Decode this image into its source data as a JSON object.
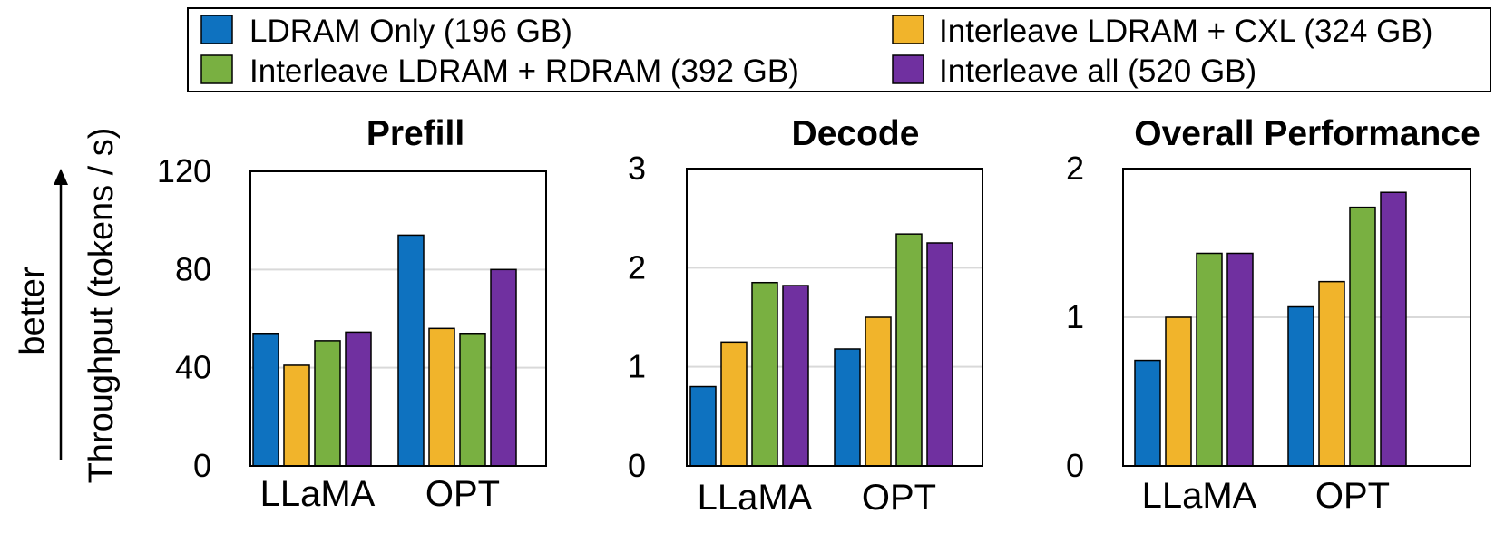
{
  "chart_data": {
    "legend": [
      {
        "name": "LDRAM Only (196 GB)",
        "color": "#0e72c0"
      },
      {
        "name": "Interleave LDRAM + CXL (324 GB)",
        "color": "#f1b42b"
      },
      {
        "name": "Interleave LDRAM + RDRAM (392 GB)",
        "color": "#79b041"
      },
      {
        "name": "Interleave all (520 GB)",
        "color": "#7030a0"
      }
    ],
    "ylabel": "Throughput (tokens / s)",
    "arrow_label": "better",
    "panels": [
      {
        "type": "bar",
        "title": "Prefill",
        "categories": [
          "LLaMA",
          "OPT"
        ],
        "ylim": [
          0,
          120
        ],
        "yticks": [
          "0",
          "40",
          "80",
          "120"
        ],
        "series": [
          {
            "name": "LDRAM Only (196 GB)",
            "values": [
              54,
              94
            ]
          },
          {
            "name": "Interleave LDRAM + CXL (324 GB)",
            "values": [
              41,
              56
            ]
          },
          {
            "name": "Interleave LDRAM + RDRAM (392 GB)",
            "values": [
              51,
              54
            ]
          },
          {
            "name": "Interleave all (520 GB)",
            "values": [
              54.5,
              80
            ]
          }
        ]
      },
      {
        "type": "bar",
        "title": "Decode",
        "categories": [
          "LLaMA",
          "OPT"
        ],
        "ylim": [
          0,
          3
        ],
        "yticks": [
          "0",
          "1",
          "2",
          "3"
        ],
        "series": [
          {
            "name": "LDRAM Only (196 GB)",
            "values": [
              0.8,
              1.18
            ]
          },
          {
            "name": "Interleave LDRAM + CXL (324 GB)",
            "values": [
              1.25,
              1.5
            ]
          },
          {
            "name": "Interleave LDRAM + RDRAM (392 GB)",
            "values": [
              1.85,
              2.34
            ]
          },
          {
            "name": "Interleave all (520 GB)",
            "values": [
              1.82,
              2.25
            ]
          }
        ]
      },
      {
        "type": "bar",
        "title": "Overall Performance",
        "categories": [
          "LLaMA",
          "OPT"
        ],
        "ylim": [
          0,
          2
        ],
        "yticks": [
          "0",
          "1",
          "2"
        ],
        "series": [
          {
            "name": "LDRAM Only (196 GB)",
            "values": [
              0.71,
              1.07
            ]
          },
          {
            "name": "Interleave LDRAM + CXL (324 GB)",
            "values": [
              1.0,
              1.24
            ]
          },
          {
            "name": "Interleave LDRAM + RDRAM (392 GB)",
            "values": [
              1.43,
              1.74
            ]
          },
          {
            "name": "Interleave all (520 GB)",
            "values": [
              1.43,
              1.84
            ]
          }
        ]
      }
    ]
  }
}
